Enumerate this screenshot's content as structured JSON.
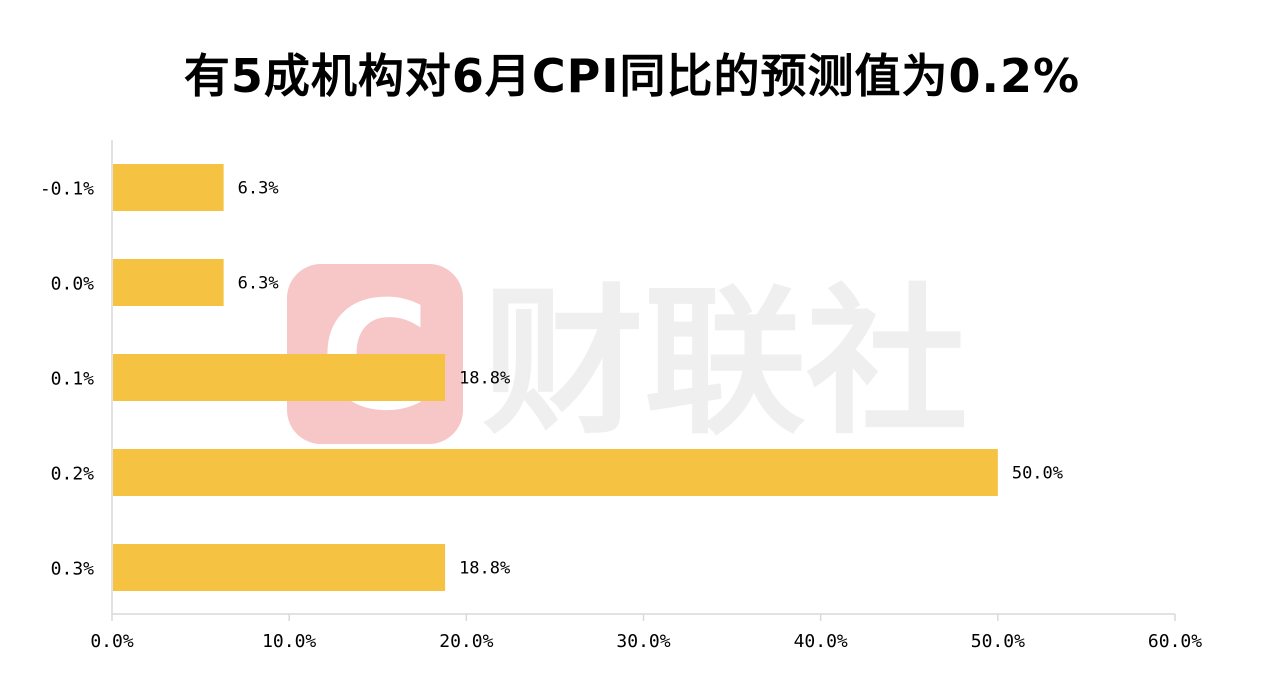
{
  "chart_data": {
    "type": "bar",
    "orientation": "horizontal",
    "title": "有5成机构对6月CPI同比的预测值为0.2%",
    "xlabel": "",
    "ylabel": "",
    "categories": [
      "-0.1%",
      "0.0%",
      "0.1%",
      "0.2%",
      "0.3%"
    ],
    "values": [
      6.3,
      6.3,
      18.8,
      50.0,
      18.8
    ],
    "data_labels": [
      "6.3%",
      "6.3%",
      "18.8%",
      "50.0%",
      "18.8%"
    ],
    "xlim": [
      0,
      60
    ],
    "x_ticks": [
      0,
      10,
      20,
      30,
      40,
      50,
      60
    ],
    "x_tick_labels": [
      "0.0%",
      "10.0%",
      "20.0%",
      "30.0%",
      "40.0%",
      "50.0%",
      "60.0%"
    ],
    "grid": false,
    "legend": "none",
    "bar_color": "#F5C242",
    "axis_color": "#D9D9D9"
  },
  "watermark": {
    "text": "财联社",
    "badge_letter": "C",
    "badge_color": "#F7C6C6",
    "text_color": "#EFEFEF"
  }
}
